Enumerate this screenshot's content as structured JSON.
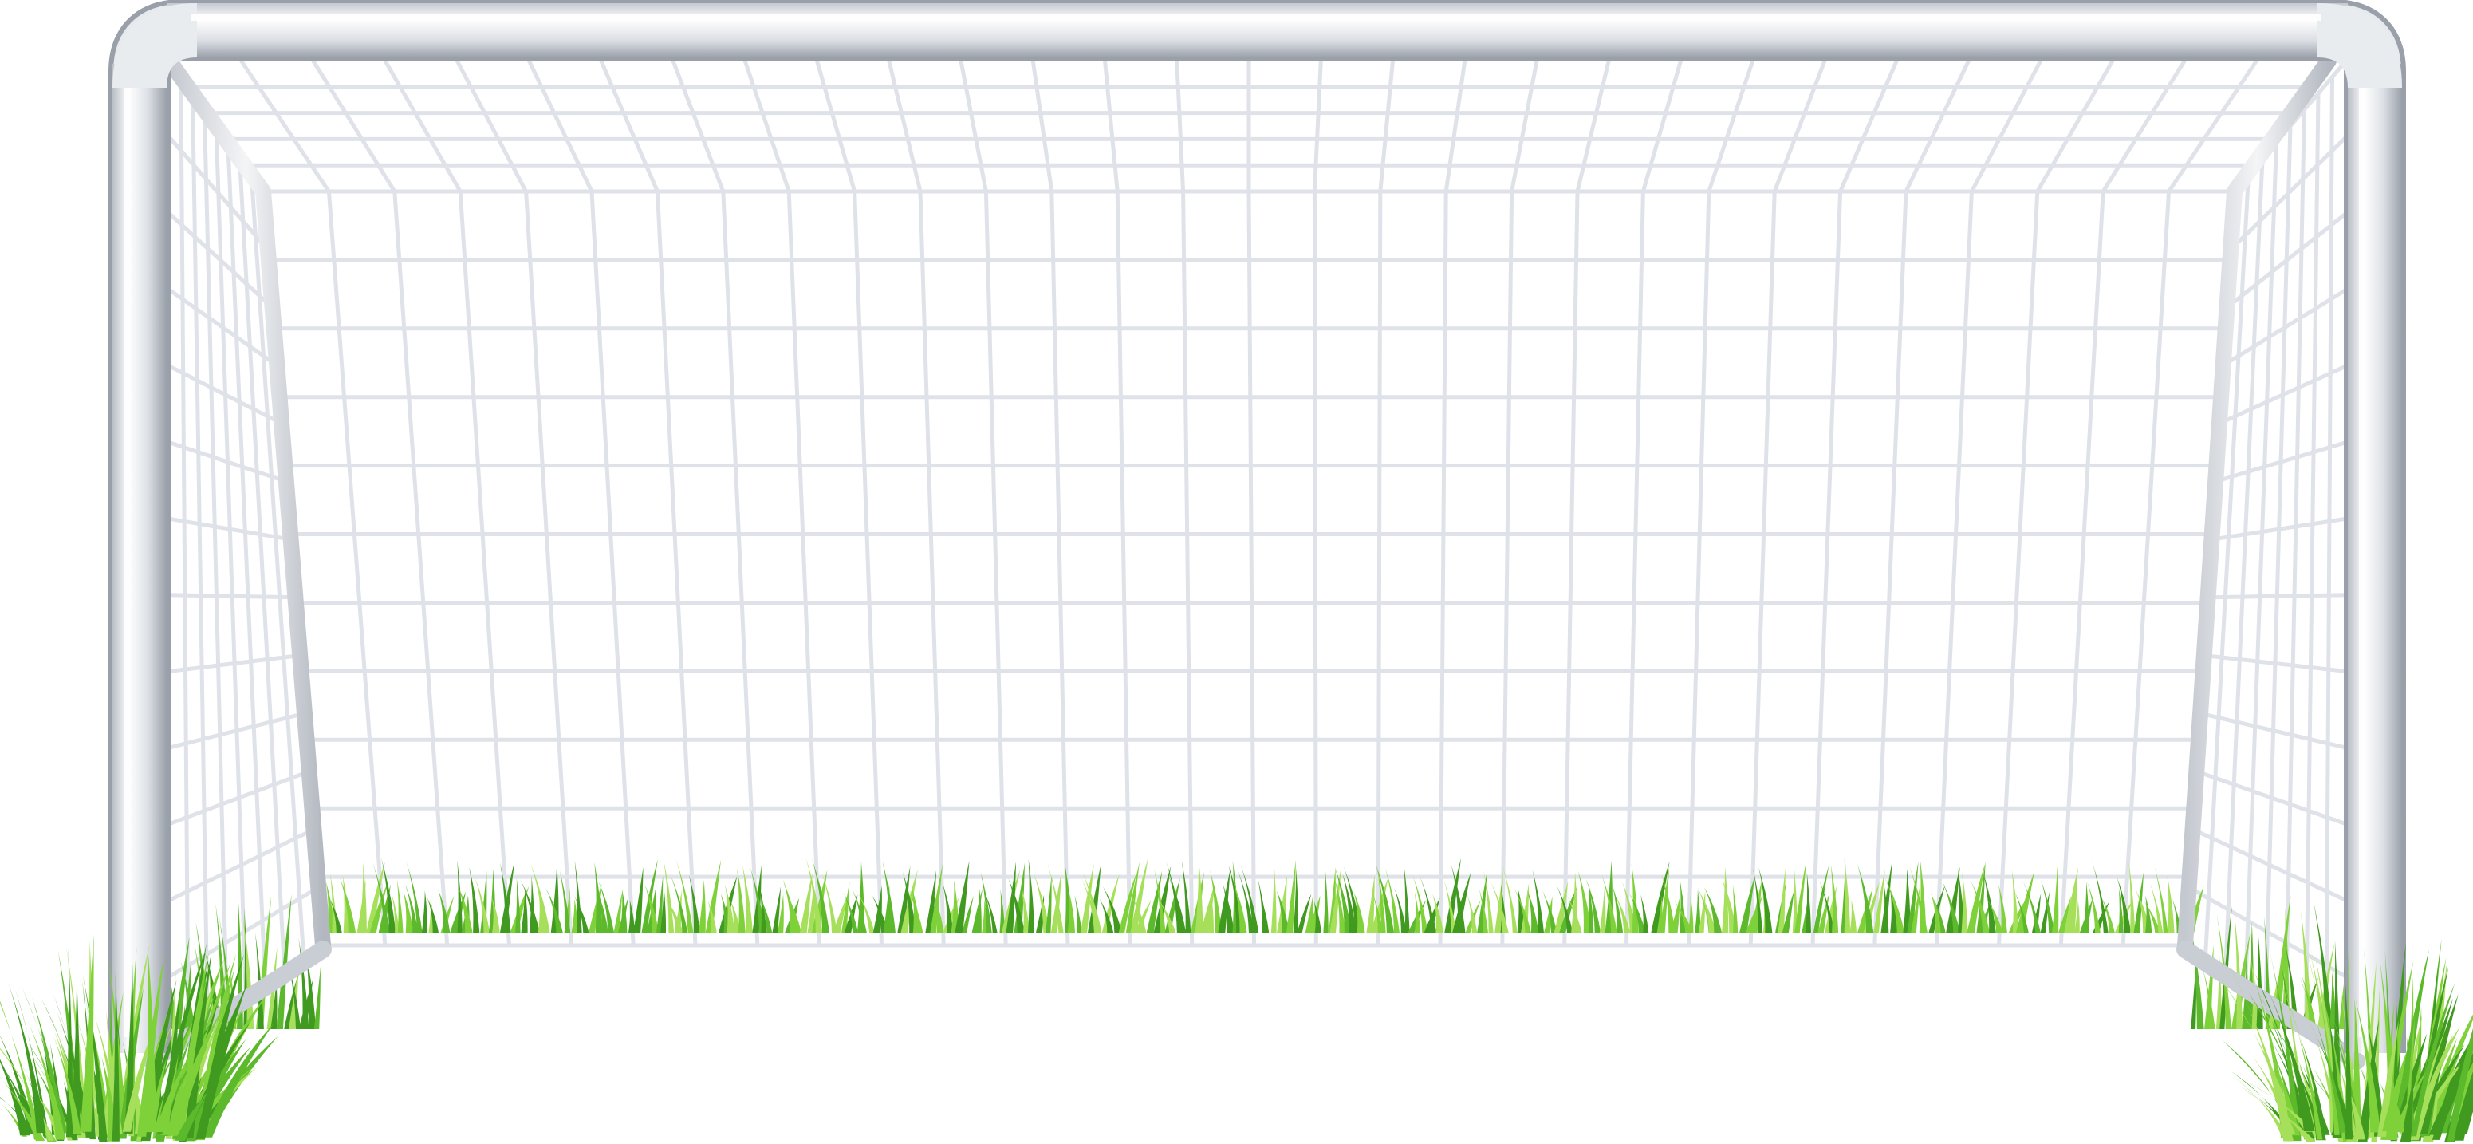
{
  "scene": {
    "subject": "soccer-goal",
    "background_color": "#ffffff",
    "frame_color": "#d9dde3",
    "frame_highlight_color": "#f7f8fa",
    "frame_shadow_color": "#a8adb5",
    "net_color": "#dfe2e8",
    "grass_colors": [
      "#3f9a1f",
      "#5cb92b",
      "#7fd13a",
      "#a6e05a"
    ]
  },
  "net": {
    "back_columns": 30,
    "back_rows": 11,
    "roof_rows": 5,
    "side_columns": 8,
    "side_rows": 13
  }
}
